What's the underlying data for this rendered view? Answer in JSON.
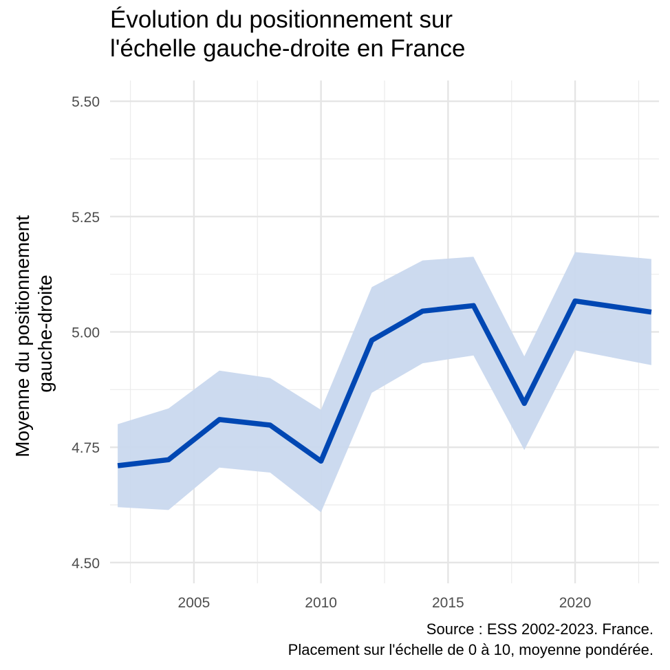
{
  "chart_data": {
    "type": "line",
    "title_lines": [
      "Évolution du positionnement sur",
      "l'échelle gauche-droite en France"
    ],
    "ylabel_lines": [
      "Moyenne du positionnement",
      "gauche-droite"
    ],
    "xlabel": "",
    "caption_lines": [
      "Source : ESS 2002-2023. France.",
      "Placement sur l'échelle de 0 à 10, moyenne pondérée."
    ],
    "x": [
      2002,
      2004,
      2006,
      2008,
      2010,
      2012,
      2014,
      2016,
      2018,
      2020,
      2023
    ],
    "series": [
      {
        "name": "Moyenne",
        "values": [
          4.71,
          4.723,
          4.81,
          4.798,
          4.72,
          4.982,
          5.045,
          5.057,
          4.845,
          5.067,
          5.043
        ],
        "lower": [
          4.62,
          4.614,
          4.706,
          4.695,
          4.609,
          4.868,
          4.932,
          4.949,
          4.744,
          4.96,
          4.928
        ],
        "upper": [
          4.8,
          4.834,
          4.916,
          4.9,
          4.831,
          5.097,
          5.155,
          5.163,
          4.947,
          5.173,
          5.158
        ]
      }
    ],
    "xlim": [
      2001.7,
      2023.3
    ],
    "ylim": [
      4.455,
      5.545
    ],
    "x_ticks": [
      "2005",
      "2010",
      "2015",
      "2020"
    ],
    "x_tick_values": [
      2005,
      2010,
      2015,
      2020
    ],
    "y_ticks": [
      "4.50",
      "4.75",
      "5.00",
      "5.25",
      "5.50"
    ],
    "y_tick_values": [
      4.5,
      4.75,
      5.0,
      5.25,
      5.5
    ],
    "line_color": "#0047b3",
    "ribbon_color": "#c9d8ee",
    "grid": true,
    "legend": "none"
  }
}
